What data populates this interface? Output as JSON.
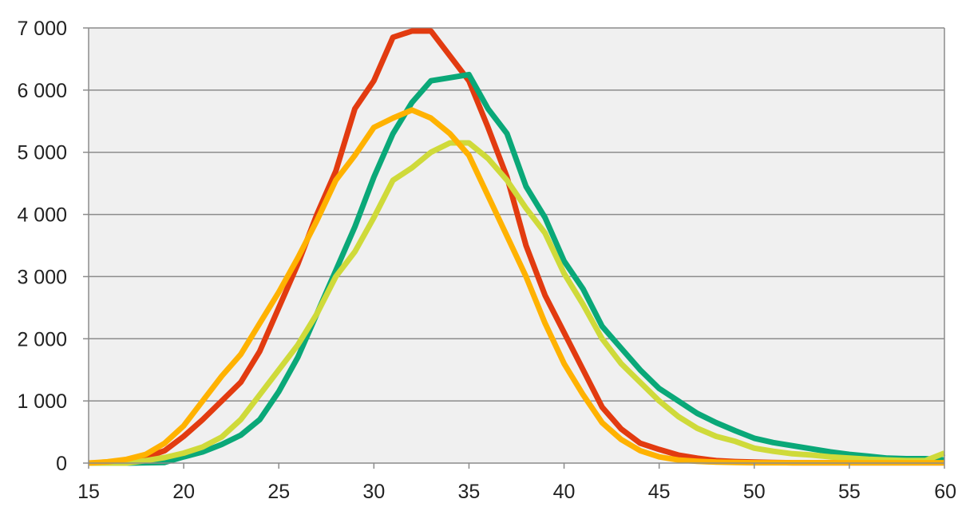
{
  "chart_data": {
    "type": "line",
    "title": "",
    "xlabel": "",
    "ylabel": "",
    "xlim": [
      15,
      60
    ],
    "ylim": [
      0,
      7000
    ],
    "x_ticks": [
      15,
      20,
      25,
      30,
      35,
      40,
      45,
      50,
      55,
      60
    ],
    "x_tick_labels": [
      "15",
      "20",
      "25",
      "30",
      "35",
      "40",
      "45",
      "50",
      "55",
      "60"
    ],
    "y_ticks": [
      0,
      1000,
      2000,
      3000,
      4000,
      5000,
      6000,
      7000
    ],
    "y_tick_labels": [
      "0",
      "1 000",
      "2 000",
      "3 000",
      "4 000",
      "5 000",
      "6 000",
      "7 000"
    ],
    "grid": "horizontal",
    "background_color": "#f0f0f0",
    "x": [
      15,
      16,
      17,
      18,
      19,
      20,
      21,
      22,
      23,
      24,
      25,
      26,
      27,
      28,
      29,
      30,
      31,
      32,
      33,
      34,
      35,
      36,
      37,
      38,
      39,
      40,
      41,
      42,
      43,
      44,
      45,
      46,
      47,
      48,
      49,
      50,
      51,
      52,
      53,
      54,
      55,
      56,
      57,
      58,
      59,
      60
    ],
    "series": [
      {
        "color": "#e23b10",
        "values": [
          0,
          5,
          40,
          90,
          200,
          430,
          700,
          1000,
          1300,
          1800,
          2500,
          3200,
          4000,
          4700,
          5700,
          6150,
          6850,
          6950,
          6950,
          6550,
          6150,
          5400,
          4600,
          3500,
          2700,
          2100,
          1500,
          900,
          550,
          320,
          220,
          130,
          80,
          40,
          25,
          15,
          10,
          5,
          5,
          5,
          5,
          5,
          5,
          5,
          5,
          5
        ]
      },
      {
        "color": "#0aa878",
        "values": [
          0,
          0,
          0,
          5,
          10,
          100,
          180,
          300,
          450,
          700,
          1150,
          1700,
          2400,
          3100,
          3800,
          4600,
          5300,
          5800,
          6150,
          6200,
          6250,
          5700,
          5300,
          4450,
          3950,
          3250,
          2800,
          2200,
          1850,
          1500,
          1200,
          1000,
          800,
          650,
          520,
          400,
          330,
          280,
          230,
          180,
          140,
          110,
          80,
          70,
          70,
          50
        ]
      },
      {
        "color": "#cfda3a",
        "values": [
          0,
          0,
          0,
          40,
          90,
          160,
          260,
          420,
          700,
          1100,
          1500,
          1900,
          2400,
          3000,
          3400,
          3950,
          4550,
          4750,
          5000,
          5150,
          5150,
          4900,
          4550,
          4100,
          3700,
          3050,
          2550,
          2000,
          1600,
          1300,
          1000,
          750,
          560,
          430,
          350,
          240,
          190,
          150,
          130,
          100,
          80,
          60,
          50,
          40,
          40,
          160
        ]
      },
      {
        "color": "#ffb200",
        "values": [
          0,
          20,
          60,
          140,
          320,
          600,
          1000,
          1400,
          1750,
          2250,
          2750,
          3300,
          3900,
          4550,
          4950,
          5400,
          5550,
          5680,
          5550,
          5300,
          4950,
          4300,
          3650,
          3000,
          2250,
          1600,
          1100,
          650,
          380,
          200,
          100,
          50,
          30,
          15,
          10,
          5,
          5,
          5,
          5,
          5,
          5,
          5,
          5,
          5,
          5,
          5
        ]
      }
    ]
  }
}
